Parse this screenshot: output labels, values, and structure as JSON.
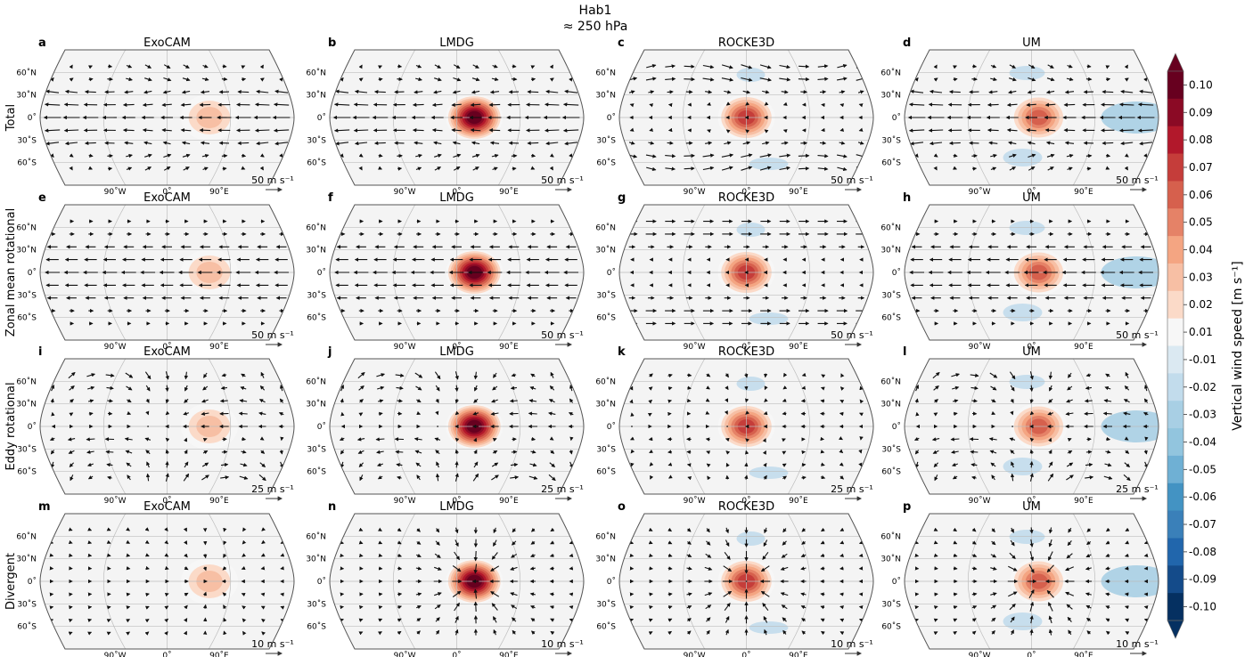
{
  "figure": {
    "title_line1": "Hab1",
    "title_line2": "≈ 250 hPa"
  },
  "columns": [
    {
      "model": "ExoCAM"
    },
    {
      "model": "LMDG"
    },
    {
      "model": "ROCKE3D"
    },
    {
      "model": "UM"
    }
  ],
  "rows": [
    {
      "label": "Total",
      "arrow_scale_label": "50 m s⁻¹",
      "letters": [
        "a",
        "b",
        "c",
        "d"
      ],
      "field": "total"
    },
    {
      "label": "Zonal mean rotational",
      "arrow_scale_label": "50 m s⁻¹",
      "letters": [
        "e",
        "f",
        "g",
        "h"
      ],
      "field": "zonal"
    },
    {
      "label": "Eddy rotational",
      "arrow_scale_label": "25 m s⁻¹",
      "letters": [
        "i",
        "j",
        "k",
        "l"
      ],
      "field": "eddy"
    },
    {
      "label": "Divergent",
      "arrow_scale_label": "10 m s⁻¹",
      "letters": [
        "m",
        "n",
        "o",
        "p"
      ],
      "field": "divergent"
    }
  ],
  "map_axes": {
    "lat_labels": [
      "60˚N",
      "30˚N",
      "0˚",
      "30˚S",
      "60˚S"
    ],
    "lon_labels": [
      "90˚W",
      "0˚",
      "90˚E"
    ],
    "projection": "Robinson"
  },
  "colorbar": {
    "label": "Vertical wind speed [m s⁻¹]",
    "ticks": [
      "0.10",
      "0.09",
      "0.08",
      "0.07",
      "0.06",
      "0.05",
      "0.04",
      "0.03",
      "0.02",
      "0.01",
      "-0.01",
      "-0.02",
      "-0.03",
      "-0.04",
      "-0.05",
      "-0.06",
      "-0.07",
      "-0.08",
      "-0.09",
      "-0.10"
    ],
    "colors": [
      "#67001f",
      "#8b0a25",
      "#b2182b",
      "#c53d3a",
      "#d6604d",
      "#e58267",
      "#f4a582",
      "#f7bfa4",
      "#fbdac8",
      "#f7f7f7",
      "#dbe9f2",
      "#c2dcec",
      "#a8cfe4",
      "#92c5de",
      "#6fb0d4",
      "#4393c3",
      "#3a80b9",
      "#2166ac",
      "#144b8a",
      "#053061"
    ]
  },
  "chart_data": {
    "type": "heatmap",
    "description_units": "vertical wind speed contours with horizontal wind vectors",
    "colorbar_range": [
      -0.1,
      0.1
    ],
    "panels": [
      {
        "letter": "a",
        "model": "ExoCAM",
        "component": "Total",
        "peak_w": 0.03,
        "peak_lon": 60,
        "arrow_scale": 50
      },
      {
        "letter": "b",
        "model": "LMDG",
        "component": "Total",
        "peak_w": 0.1,
        "peak_lon": 25,
        "arrow_scale": 50
      },
      {
        "letter": "c",
        "model": "ROCKE3D",
        "component": "Total",
        "peak_w": 0.07,
        "peak_lon": 0,
        "arrow_scale": 50
      },
      {
        "letter": "d",
        "model": "UM",
        "component": "Total",
        "peak_w": 0.06,
        "peak_lon": 10,
        "arrow_scale": 50
      },
      {
        "letter": "e",
        "model": "ExoCAM",
        "component": "Zonal mean rotational",
        "peak_w": 0.03,
        "peak_lon": 60,
        "arrow_scale": 50
      },
      {
        "letter": "f",
        "model": "LMDG",
        "component": "Zonal mean rotational",
        "peak_w": 0.1,
        "peak_lon": 25,
        "arrow_scale": 50
      },
      {
        "letter": "g",
        "model": "ROCKE3D",
        "component": "Zonal mean rotational",
        "peak_w": 0.07,
        "peak_lon": 0,
        "arrow_scale": 50
      },
      {
        "letter": "h",
        "model": "UM",
        "component": "Zonal mean rotational",
        "peak_w": 0.06,
        "peak_lon": 10,
        "arrow_scale": 50
      },
      {
        "letter": "i",
        "model": "ExoCAM",
        "component": "Eddy rotational",
        "peak_w": 0.03,
        "peak_lon": 60,
        "arrow_scale": 25
      },
      {
        "letter": "j",
        "model": "LMDG",
        "component": "Eddy rotational",
        "peak_w": 0.1,
        "peak_lon": 25,
        "arrow_scale": 25
      },
      {
        "letter": "k",
        "model": "ROCKE3D",
        "component": "Eddy rotational",
        "peak_w": 0.07,
        "peak_lon": 0,
        "arrow_scale": 25
      },
      {
        "letter": "l",
        "model": "UM",
        "component": "Eddy rotational",
        "peak_w": 0.06,
        "peak_lon": 10,
        "arrow_scale": 25
      },
      {
        "letter": "m",
        "model": "ExoCAM",
        "component": "Divergent",
        "peak_w": 0.03,
        "peak_lon": 60,
        "arrow_scale": 10
      },
      {
        "letter": "n",
        "model": "LMDG",
        "component": "Divergent",
        "peak_w": 0.1,
        "peak_lon": 25,
        "arrow_scale": 10
      },
      {
        "letter": "o",
        "model": "ROCKE3D",
        "component": "Divergent",
        "peak_w": 0.07,
        "peak_lon": 0,
        "arrow_scale": 10
      },
      {
        "letter": "p",
        "model": "UM",
        "component": "Divergent",
        "peak_w": 0.06,
        "peak_lon": 10,
        "arrow_scale": 10
      }
    ]
  }
}
